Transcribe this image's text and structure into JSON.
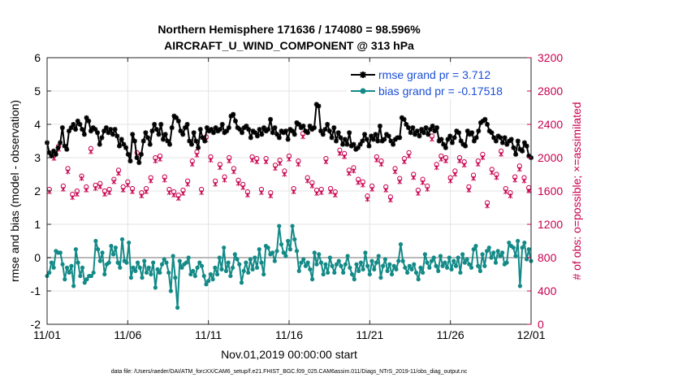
{
  "chart_data": {
    "type": "line",
    "title_line1": "Northern Hemisphere 171636 / 174080 = 98.596%",
    "title_line2": "AIRCRAFT_U_WIND_COMPONENT @ 313 hPa",
    "xlabel": "Nov.01,2019 00:00:00 start",
    "ylabel_left": "rmse and bias (model - observation)",
    "ylabel_right": "# of obs: o=possible; ×=assimilated",
    "xlim": [
      0,
      30
    ],
    "ylim_left": [
      -2,
      6
    ],
    "ylim_right": [
      0,
      3200
    ],
    "x_ticks": [
      0,
      5,
      10,
      15,
      20,
      25,
      30
    ],
    "x_tick_labels": [
      "11/01",
      "11/06",
      "11/11",
      "11/16",
      "11/21",
      "11/26",
      "12/01"
    ],
    "y_ticks_left": [
      "-2",
      "-1",
      "0",
      "1",
      "2",
      "3",
      "4",
      "5",
      "6"
    ],
    "y_ticks_right": [
      "0",
      "400",
      "800",
      "1200",
      "1600",
      "2000",
      "2400",
      "2800",
      "3200"
    ],
    "footer": "data file: /Users/raeder/DAI/ATM_forcXX/CAM6_setup/f.e21.FHIST_BGC.f09_025.CAM6assim.011/Diags_NTrS_2019-11/obs_diag_output.nc",
    "colors": {
      "rmse": "#000000",
      "bias": "#138a87",
      "obs": "#c8004f",
      "legend_text": "#1a4fd6",
      "zero": "#b8b8b8"
    },
    "series": [
      {
        "name": "rmse grand pr = 3.712",
        "axis": "left",
        "values": [
          3.45,
          3.15,
          3.05,
          3.2,
          3.1,
          3.3,
          3.45,
          3.9,
          3.35,
          3.25,
          3.8,
          3.9,
          4.0,
          3.85,
          4.1,
          4.0,
          3.85,
          3.7,
          4.2,
          4.1,
          3.8,
          3.9,
          3.85,
          3.75,
          3.4,
          3.6,
          3.8,
          3.9,
          3.75,
          3.85,
          3.7,
          3.85,
          3.65,
          3.35,
          3.55,
          3.4,
          3.3,
          3.1,
          2.9,
          3.7,
          3.5,
          3.0,
          2.85,
          3.1,
          3.5,
          3.75,
          3.6,
          3.4,
          3.8,
          4.0,
          3.85,
          3.7,
          4.0,
          3.55,
          3.7,
          3.5,
          3.4,
          3.9,
          4.25,
          4.2,
          4.1,
          3.8,
          3.7,
          3.9,
          4.0,
          3.5,
          3.4,
          3.75,
          3.5,
          3.3,
          3.85,
          3.6,
          3.5,
          3.9,
          3.8,
          3.85,
          3.75,
          3.9,
          3.8,
          3.85,
          4.0,
          3.75,
          3.8,
          3.9,
          4.25,
          4.3,
          4.1,
          3.9,
          3.85,
          3.75,
          3.9,
          3.95,
          3.85,
          3.6,
          3.8,
          3.75,
          3.65,
          3.85,
          3.7,
          3.9,
          3.8,
          3.85,
          4.15,
          3.75,
          3.9,
          3.7,
          3.6,
          3.8,
          3.75,
          3.8,
          3.55,
          3.85,
          3.8,
          3.7,
          4.05,
          4.0,
          3.9,
          3.95,
          3.8,
          3.75,
          3.95,
          3.85,
          3.9,
          4.6,
          4.55,
          3.8,
          3.7,
          3.85,
          4.0,
          3.8,
          3.6,
          3.9,
          3.5,
          3.75,
          3.6,
          3.4,
          3.55,
          3.4,
          3.75,
          3.35,
          3.4,
          3.25,
          3.3,
          3.4,
          3.5,
          3.7,
          3.55,
          3.35,
          3.65,
          3.55,
          3.7,
          3.5,
          3.95,
          3.5,
          3.55,
          3.7,
          3.65,
          3.5,
          3.4,
          3.55,
          3.6,
          3.6,
          4.2,
          4.15,
          4.0,
          3.9,
          3.75,
          3.9,
          3.7,
          3.8,
          3.65,
          3.85,
          3.75,
          3.9,
          3.7,
          3.85,
          3.95,
          3.8,
          3.9,
          3.5,
          3.55,
          3.4,
          3.3,
          3.55,
          3.65,
          3.45,
          3.6,
          3.8,
          3.75,
          3.5,
          3.4,
          3.35,
          3.8,
          3.7,
          3.75,
          3.5,
          3.6,
          3.8,
          4.05,
          4.1,
          4.15,
          4.0,
          3.8,
          3.75,
          3.6,
          3.5,
          3.65,
          3.6,
          3.45,
          3.6,
          3.4,
          3.5,
          3.55,
          3.3,
          3.1,
          3.5,
          3.25,
          3.2,
          3.45,
          3.35,
          3.05,
          3.0
        ]
      },
      {
        "name": "bias grand pr = -0.17518",
        "axis": "left",
        "values": [
          -0.55,
          -0.45,
          -0.15,
          -0.3,
          0.2,
          0.15,
          0.15,
          -0.2,
          -0.65,
          -0.3,
          -0.45,
          -0.25,
          -0.85,
          0.25,
          -0.15,
          -0.55,
          -0.3,
          -0.75,
          -0.65,
          -0.55,
          -0.55,
          -0.45,
          0.5,
          0.25,
          -0.1,
          0.15,
          -0.5,
          -0.2,
          -0.15,
          0.35,
          0.1,
          0.3,
          -0.15,
          -0.3,
          0.55,
          -0.1,
          -0.15,
          0.45,
          -0.6,
          -0.3,
          -0.4,
          -0.15,
          -0.3,
          -0.6,
          -0.1,
          -0.45,
          -0.3,
          -0.5,
          -0.15,
          -0.9,
          -0.35,
          -0.45,
          -0.2,
          -0.05,
          -0.15,
          -0.45,
          -1.0,
          0.05,
          -0.6,
          -1.5,
          -0.1,
          -0.3,
          -0.2,
          -0.15,
          0.0,
          -0.5,
          -0.4,
          -0.55,
          -0.3,
          -0.15,
          -0.25,
          -0.55,
          -0.8,
          -0.7,
          -0.5,
          -0.65,
          -0.3,
          -0.5,
          0.0,
          -0.35,
          0.3,
          -0.4,
          -0.15,
          -0.55,
          -0.3,
          0.1,
          -0.05,
          -0.2,
          -0.75,
          -0.4,
          -0.15,
          -0.45,
          -0.05,
          -0.35,
          0.0,
          -0.3,
          0.25,
          -0.15,
          -0.5,
          0.35,
          0.3,
          0.1,
          0.15,
          -0.1,
          0.2,
          0.95,
          0.4,
          0.15,
          0.05,
          0.5,
          0.25,
          0.95,
          0.55,
          0.2,
          -0.4,
          -0.15,
          -0.05,
          -0.25,
          -0.15,
          -0.35,
          -0.65,
          0.15,
          -0.2,
          0.1,
          -0.15,
          -0.5,
          -0.2,
          -0.45,
          0.0,
          -0.25,
          -0.45,
          -0.2,
          -0.1,
          -0.25,
          -0.45,
          -0.2,
          0.05,
          -0.3,
          -0.5,
          -0.65,
          -0.2,
          -0.4,
          -0.15,
          -0.35,
          0.15,
          -0.25,
          -0.5,
          -0.1,
          -0.35,
          -0.15,
          0.05,
          -0.6,
          -0.25,
          -0.05,
          -0.4,
          -0.2,
          -0.5,
          -0.25,
          -0.35,
          -0.1,
          0.4,
          -0.1,
          -0.3,
          -0.45,
          -0.25,
          -0.35,
          -0.2,
          -0.45,
          -0.65,
          -0.3,
          -0.45,
          0.1,
          -0.15,
          -0.3,
          -0.1,
          0.0,
          -0.25,
          -0.4,
          0.05,
          -0.25,
          -0.15,
          -0.3,
          0.0,
          -0.35,
          -0.1,
          -0.25,
          0.0,
          -0.45,
          0.1,
          -0.15,
          -0.05,
          -0.2,
          -0.3,
          0.25,
          0.35,
          -0.25,
          -0.4,
          0.1,
          -0.25,
          0.2,
          0.3,
          0.0,
          0.15,
          -0.15,
          0.2,
          0.05,
          0.15,
          -0.2,
          -0.15,
          0.45,
          0.35,
          0.3,
          0.05,
          0.5,
          -0.85,
          0.3,
          0.45,
          -0.05,
          0.25,
          -0.1
        ]
      },
      {
        "name": "obs possible",
        "axis": "right",
        "marker": "circle",
        "values": [
          1620,
          2030,
          2140,
          1660,
          1870,
          1560,
          1600,
          1780,
          1650,
          2110,
          1670,
          1690,
          1600,
          1620,
          1740,
          1850,
          1650,
          1710,
          1630,
          2060,
          1580,
          1630,
          1760,
          2000,
          2020,
          1770,
          1620,
          1590,
          1550,
          1610,
          1720,
          1960,
          2070,
          1620,
          2250,
          2010,
          1720,
          1920,
          1770,
          2000,
          1870,
          1730,
          1680,
          1590,
          2010,
          1990,
          1620,
          1990,
          1580,
          1910,
          1970,
          1840,
          2020,
          1630,
          1960,
          2290,
          1760,
          1700,
          1610,
          1620,
          1990,
          1630,
          1590,
          2090,
          2050,
          1850,
          1880,
          1740,
          1710,
          1540,
          1660,
          2010,
          1960,
          1650,
          1530,
          1870,
          1750,
          1990,
          2060,
          1800,
          1610,
          1740,
          1660,
          2260,
          1920,
          2020,
          2000,
          1760,
          1840,
          2000,
          1950,
          1650,
          1790,
          1960,
          2040,
          1460,
          1860,
          1800,
          2080,
          1630,
          1580,
          1770,
          1900,
          1760,
          1640
        ]
      },
      {
        "name": "obs assimilated",
        "axis": "right",
        "marker": "x",
        "values": [
          1590,
          1990,
          2100,
          1620,
          1830,
          1520,
          1560,
          1750,
          1610,
          2070,
          1630,
          1650,
          1560,
          1580,
          1710,
          1810,
          1610,
          1670,
          1590,
          2020,
          1540,
          1590,
          1720,
          1960,
          1980,
          1730,
          1580,
          1550,
          1510,
          1570,
          1680,
          1920,
          2030,
          1580,
          2210,
          1970,
          1680,
          1880,
          1730,
          1960,
          1830,
          1690,
          1640,
          1550,
          1970,
          1950,
          1580,
          1950,
          1540,
          1870,
          1930,
          1800,
          1980,
          1590,
          1920,
          2250,
          1720,
          1660,
          1570,
          1580,
          1950,
          1590,
          1550,
          2050,
          2010,
          1810,
          1840,
          1700,
          1670,
          1500,
          1620,
          1970,
          1920,
          1610,
          1490,
          1830,
          1710,
          1950,
          2020,
          1760,
          1570,
          1700,
          1620,
          2220,
          1880,
          1980,
          1960,
          1720,
          1800,
          1960,
          1910,
          1610,
          1750,
          1920,
          2000,
          1420,
          1820,
          1760,
          2040,
          1590,
          1540,
          1730,
          1860,
          1720,
          1600
        ]
      }
    ]
  }
}
